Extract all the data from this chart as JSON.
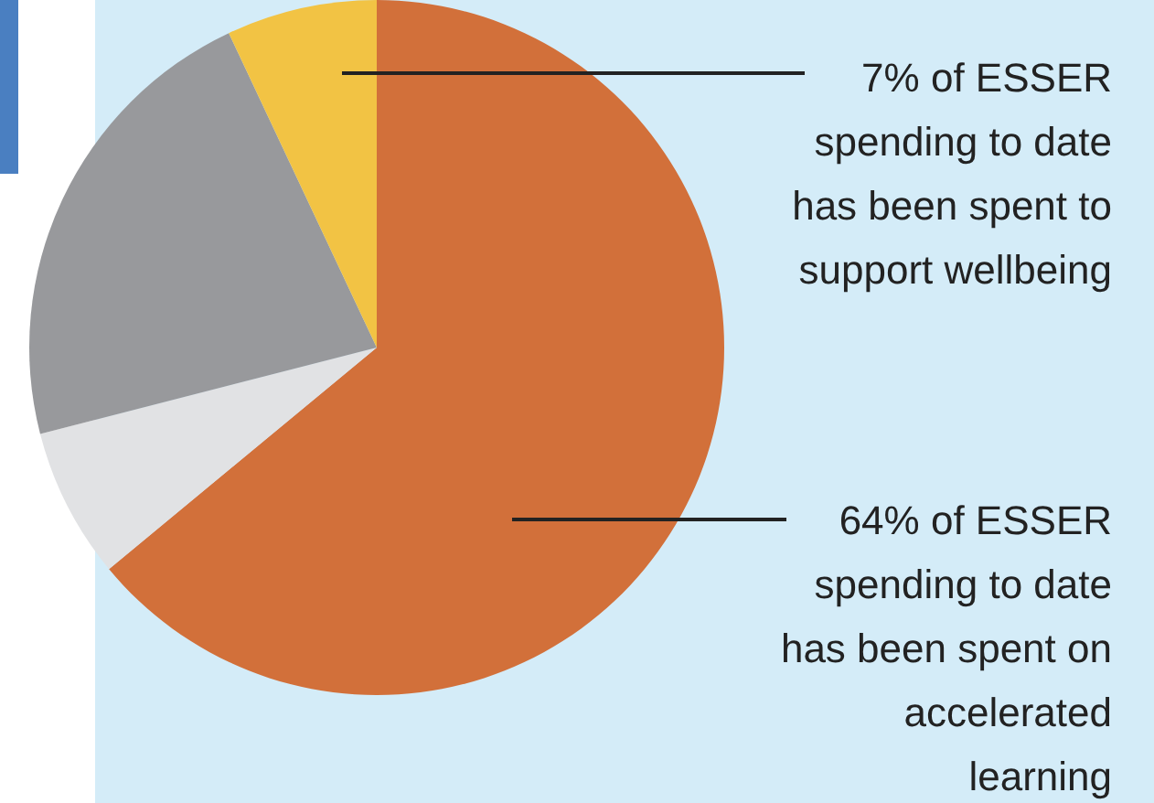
{
  "chart_data": {
    "type": "pie",
    "categories": [
      null,
      null,
      null,
      null
    ],
    "values": [
      64,
      7,
      22,
      7
    ],
    "colors": [
      "#d2703a",
      "#e1e2e4",
      "#98999c",
      "#f2c344"
    ],
    "annotations": [
      "7% of ESSER spending to date has been spent to support wellbeing",
      "64% of ESSER spending to date has been spent on accelerated learning"
    ]
  }
}
